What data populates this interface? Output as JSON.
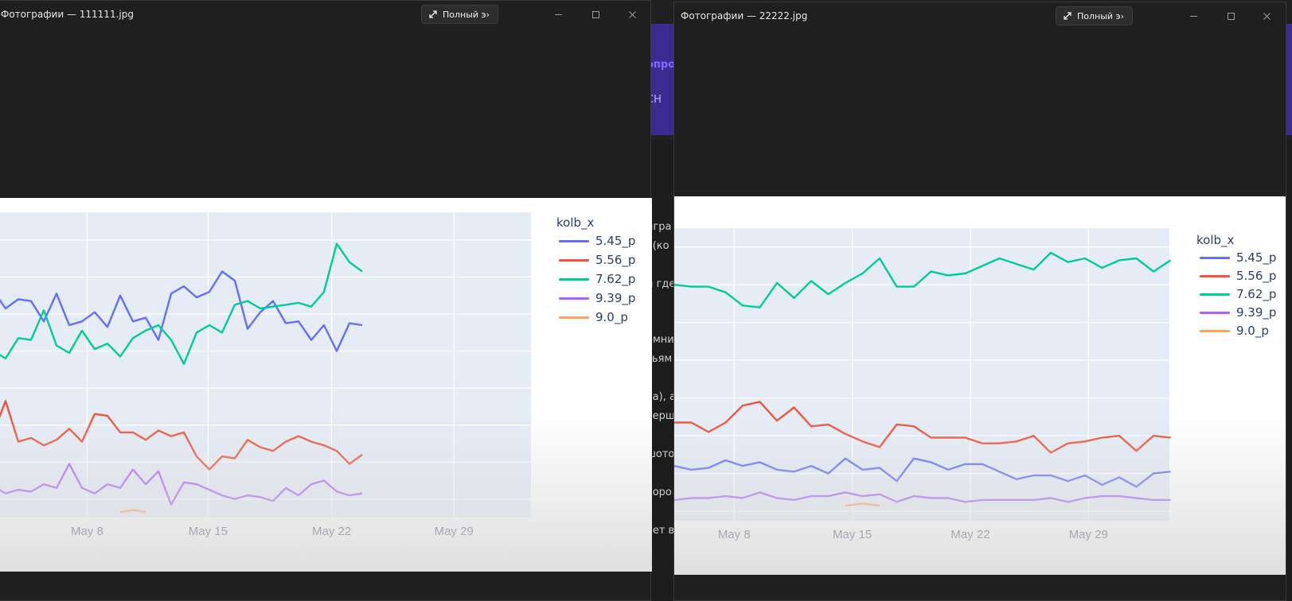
{
  "background": {
    "fragments": [
      "игра",
      "х(ко",
      "и где",
      "омни",
      "зьям",
      "ва), а",
      "верш",
      "шото",
      "хоро",
      "кет в",
      "опро",
      "СН"
    ]
  },
  "windows": [
    {
      "title": "Фотографии — 111111.jpg",
      "fullscreen_label": "Полный э›"
    },
    {
      "title": "Фотографии — 22222.jpg",
      "fullscreen_label": "Полный э›"
    }
  ],
  "icons": [
    "expand-icon",
    "minimize-icon",
    "maximize-icon",
    "close-icon"
  ],
  "colors": {
    "plot_bg": "#e5ecf6",
    "series_5_45": "#636efa",
    "series_5_56": "#ef553b",
    "series_7_62": "#00cc96",
    "series_9_39": "#ab63fa",
    "series_9_0": "#ffa15a"
  },
  "chart_data": [
    {
      "type": "line",
      "legend_title": "kolb_x",
      "x_ticks": [
        "May 8",
        "May 15",
        "May 22",
        "May 29"
      ],
      "series": [
        {
          "name": "5.45_p",
          "color": "#636efa",
          "values": [
            73,
            63,
            68,
            67,
            56,
            71,
            54,
            56,
            61,
            53,
            70,
            56,
            58,
            46,
            71,
            75,
            69,
            72,
            83,
            78,
            52,
            61,
            67,
            55,
            56,
            46,
            54,
            40,
            55,
            54
          ]
        },
        {
          "name": "5.56_p",
          "color": "#ef553b",
          "values": [
            -5,
            13,
            -9,
            -7,
            -11,
            -8,
            -2,
            -9,
            6,
            5,
            -4,
            -4,
            -8,
            -3,
            -6,
            -4,
            -17,
            -24,
            -17,
            -18,
            -8,
            -12,
            -14,
            -9,
            -6,
            -9,
            -11,
            -14,
            -21,
            -16
          ]
        },
        {
          "name": "7.62_p",
          "color": "#00cc96",
          "values": [
            40,
            36,
            47,
            46,
            62,
            43,
            39,
            51,
            41,
            44,
            37,
            47,
            51,
            54,
            46,
            33,
            50,
            54,
            50,
            65,
            67,
            63,
            64,
            65,
            66,
            64,
            72,
            98,
            88,
            83
          ]
        },
        {
          "name": "9.39_p",
          "color": "#ab63fa",
          "values": [
            -33,
            -37,
            -35,
            -36,
            -32,
            -34,
            -21,
            -34,
            -37,
            -32,
            -34,
            -24,
            -32,
            -25,
            -43,
            -31,
            -32,
            -35,
            -38,
            -40,
            -38,
            -39,
            -41,
            -34,
            -38,
            -32,
            -30,
            -36,
            -38,
            -37
          ]
        },
        {
          "name": "9.0_p",
          "color": "#ffa15a",
          "segment_start": 10,
          "values": [
            -47,
            -46,
            -47
          ]
        }
      ]
    },
    {
      "type": "line",
      "legend_title": "kolb_x",
      "x_ticks": [
        "May 8",
        "May 15",
        "May 22",
        "May 29"
      ],
      "series": [
        {
          "name": "5.45_p",
          "color": "#636efa",
          "values": [
            4,
            2,
            3,
            7,
            4,
            6,
            2,
            1,
            4,
            0,
            8,
            2,
            3,
            -4,
            8,
            6,
            2,
            5,
            5,
            1,
            -3,
            -1,
            -1,
            -4,
            -1,
            -6,
            -2,
            -7,
            0,
            1
          ]
        },
        {
          "name": "5.56_p",
          "color": "#ef553b",
          "values": [
            27,
            27,
            22,
            27,
            36,
            38,
            28,
            35,
            25,
            26,
            21,
            17,
            14,
            26,
            25,
            19,
            19,
            19,
            16,
            16,
            17,
            20,
            11,
            16,
            17,
            19,
            20,
            12,
            20,
            19
          ]
        },
        {
          "name": "7.62_p",
          "color": "#00cc96",
          "values": [
            100,
            99,
            99,
            96,
            89,
            88,
            101,
            93,
            102,
            95,
            101,
            106,
            114,
            99,
            99,
            107,
            105,
            106,
            110,
            114,
            111,
            108,
            117,
            112,
            114,
            109,
            113,
            114,
            107,
            113
          ]
        },
        {
          "name": "9.39_p",
          "color": "#ab63fa",
          "values": [
            -14,
            -13,
            -13,
            -12,
            -13,
            -10,
            -13,
            -14,
            -12,
            -12,
            -10,
            -12,
            -11,
            -15,
            -12,
            -13,
            -13,
            -15,
            -14,
            -14,
            -14,
            -14,
            -13,
            -15,
            -13,
            -12,
            -12,
            -13,
            -14,
            -14
          ]
        },
        {
          "name": "9.0_p",
          "color": "#ffa15a",
          "segment_start": 10,
          "values": [
            -17,
            -16,
            -17
          ]
        }
      ]
    }
  ]
}
